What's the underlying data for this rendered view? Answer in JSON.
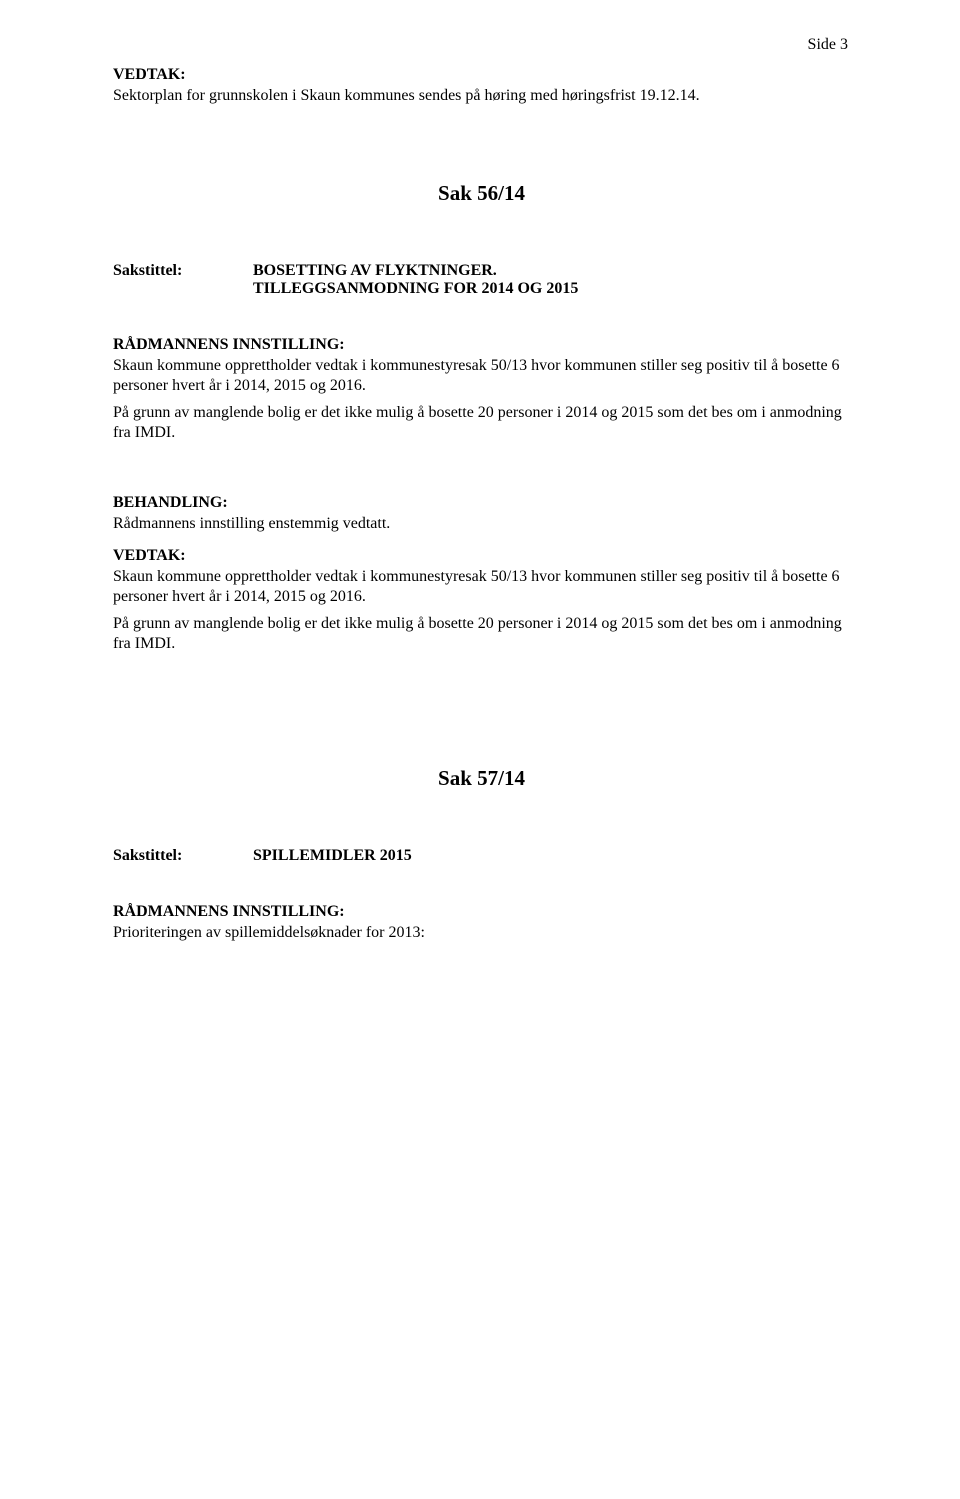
{
  "page_number": "Side 3",
  "vedtak1": {
    "label": "VEDTAK:",
    "body": "Sektorplan for grunnskolen i Skaun kommunes sendes på høring med høringsfrist 19.12.14."
  },
  "sak56": {
    "heading": "Sak 56/14",
    "sakstittel_label": "Sakstittel:",
    "sakstittel_value_line1": "BOSETTING AV FLYKTNINGER.",
    "sakstittel_value_line2": "TILLEGGSANMODNING FOR 2014  OG 2015",
    "radmannens_label": "RÅDMANNENS INNSTILLING:",
    "radmannens_para1": "Skaun kommune opprettholder vedtak i kommunestyresak 50/13 hvor kommunen stiller seg positiv til å bosette 6 personer hvert år i 2014, 2015 og 2016.",
    "radmannens_para2": "På grunn av manglende bolig er det ikke mulig å bosette 20 personer i 2014 og 2015 som det bes om i anmodning fra IMDI.",
    "behandling_label": "BEHANDLING:",
    "behandling_body": "Rådmannens innstilling enstemmig vedtatt.",
    "vedtak_label": "VEDTAK:",
    "vedtak_para1": "Skaun kommune opprettholder vedtak i kommunestyresak 50/13 hvor kommunen stiller seg positiv til å bosette 6 personer hvert år i 2014, 2015 og 2016.",
    "vedtak_para2": "På grunn av manglende bolig er det ikke mulig å bosette 20 personer i 2014 og 2015 som det bes om i anmodning fra IMDI."
  },
  "sak57": {
    "heading": "Sak 57/14",
    "sakstittel_label": "Sakstittel:",
    "sakstittel_value": "SPILLEMIDLER 2015",
    "radmannens_label": "RÅDMANNENS INNSTILLING:",
    "radmannens_para1": "Prioriteringen av spillemiddelsøknader for 2013:"
  },
  "colors": {
    "text": "#000000",
    "background": "#ffffff"
  },
  "fonts": {
    "body_family": "Times New Roman",
    "body_size_pt": 12,
    "heading_size_pt": 16
  }
}
